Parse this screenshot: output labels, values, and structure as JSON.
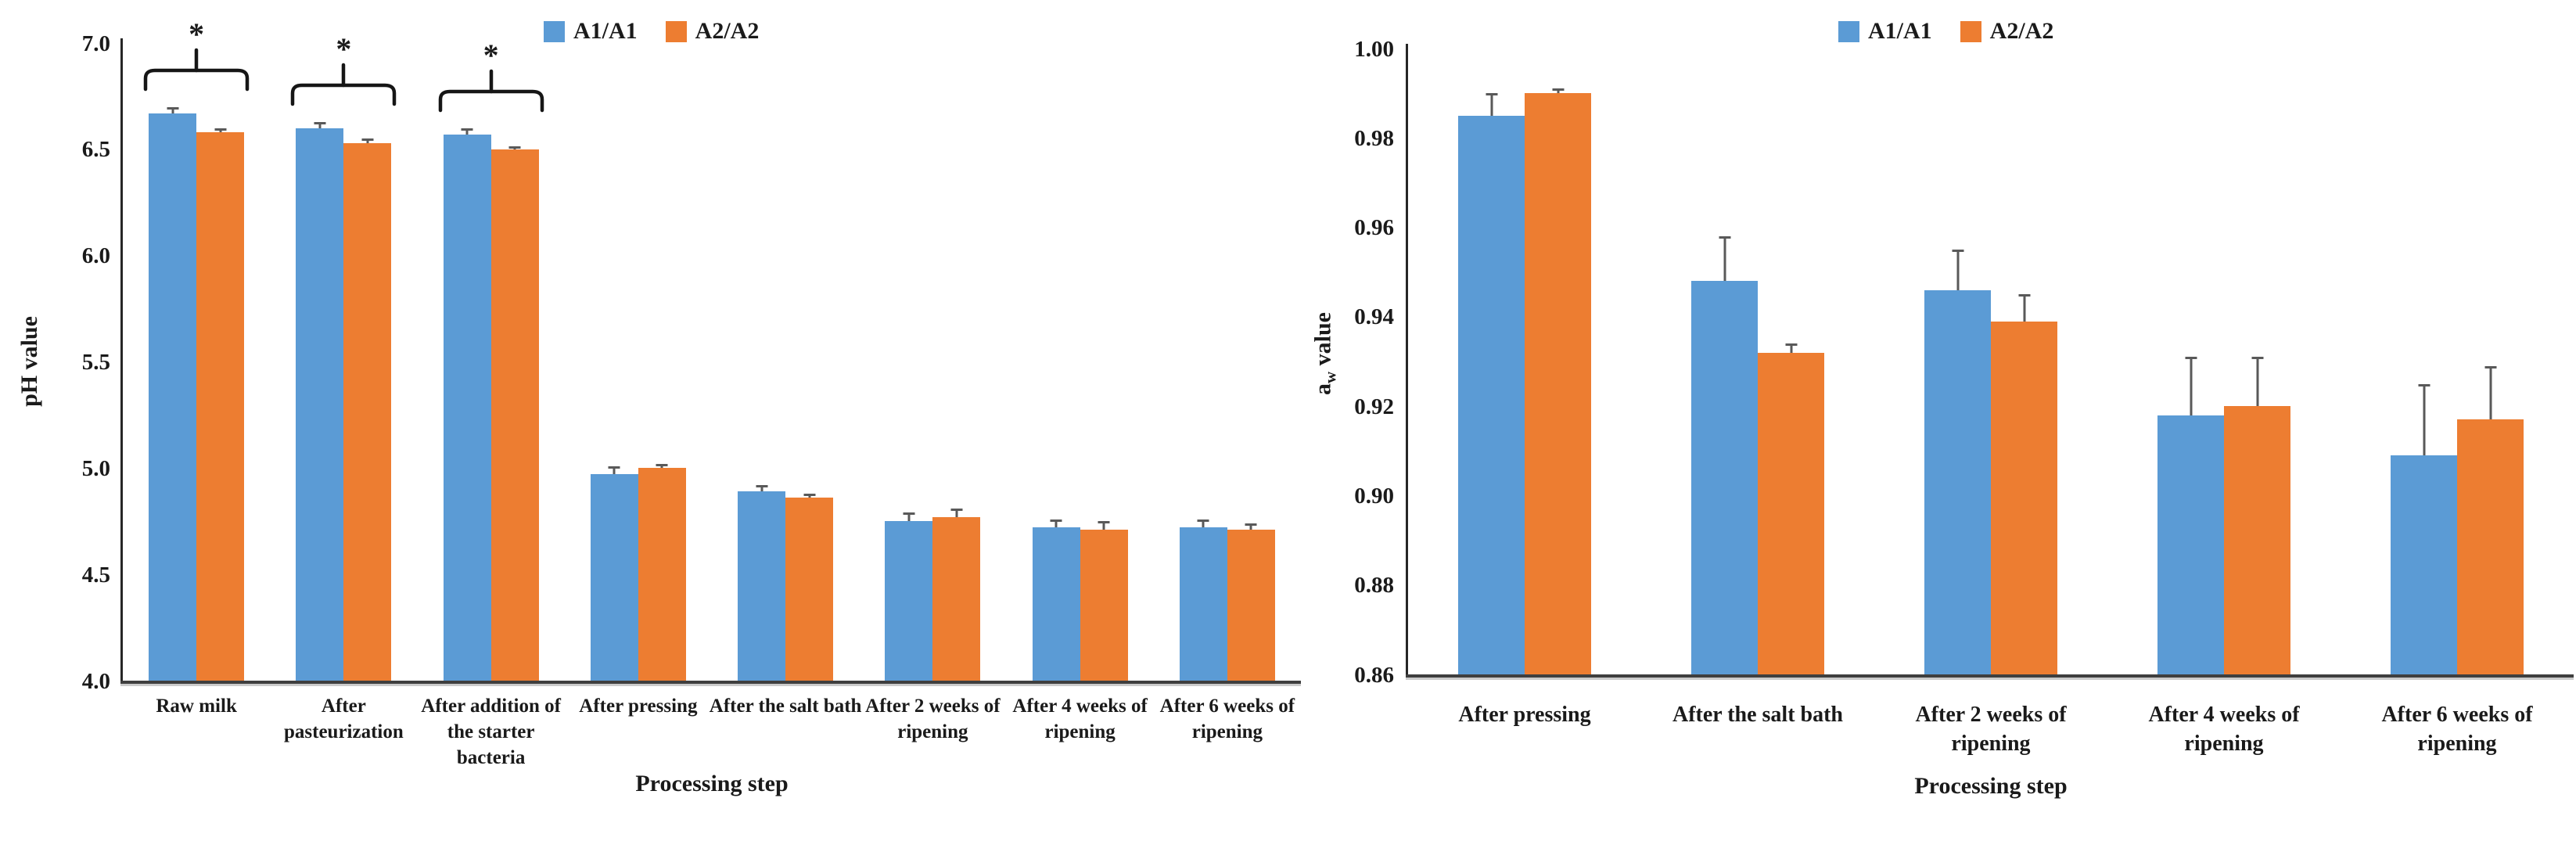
{
  "figure": {
    "background": "#ffffff",
    "axis_color": "#262626",
    "baseline_color": "#3f3f3f",
    "error_bar_color": "#595959",
    "text_color": "#1a1a1a"
  },
  "chart_data": [
    {
      "id": "ph",
      "type": "bar",
      "title": "",
      "xlabel": "Processing step",
      "ylabel": "pH value",
      "ylabel_parts": [
        {
          "text": "pH value",
          "sub": false
        }
      ],
      "ylim": [
        4.0,
        7.0
      ],
      "ytick_step": 0.5,
      "yticks": [
        "7.0",
        "6.5",
        "6.0",
        "5.5",
        "5.0",
        "4.5",
        "4.0"
      ],
      "grid": false,
      "legend_position": "top",
      "categories": [
        "Raw milk",
        "After pasteurization",
        "After addition of the starter bacteria",
        "After pressing",
        "After the salt bath",
        "After 2 weeks of ripening",
        "After 4 weeks of ripening",
        "After 6 weeks of ripening"
      ],
      "series": [
        {
          "name": "A1/A1",
          "color": "#5B9BD5",
          "values": [
            6.67,
            6.6,
            6.57,
            4.97,
            4.89,
            4.75,
            4.72,
            4.72
          ],
          "errors": [
            0.03,
            0.03,
            0.03,
            0.04,
            0.03,
            0.04,
            0.04,
            0.04
          ]
        },
        {
          "name": "A2/A2",
          "color": "#ED7D31",
          "values": [
            6.58,
            6.53,
            6.5,
            5.0,
            4.86,
            4.77,
            4.71,
            4.71
          ],
          "errors": [
            0.02,
            0.02,
            0.015,
            0.02,
            0.02,
            0.04,
            0.04,
            0.03
          ]
        }
      ],
      "significance": {
        "symbol": "*",
        "pair_indices": [
          0,
          1,
          2
        ]
      }
    },
    {
      "id": "aw",
      "type": "bar",
      "title": "",
      "xlabel": "Processing step",
      "ylabel": "aw value",
      "ylabel_parts": [
        {
          "text": "a",
          "sub": false
        },
        {
          "text": "w",
          "sub": true
        },
        {
          "text": " value",
          "sub": false
        }
      ],
      "ylim": [
        0.86,
        1.0
      ],
      "ytick_step": 0.02,
      "yticks": [
        "1.00",
        "0.98",
        "0.96",
        "0.94",
        "0.92",
        "0.90",
        "0.88",
        "0.86"
      ],
      "grid": false,
      "legend_position": "top",
      "categories": [
        "After pressing",
        "After the salt bath",
        "After 2 weeks of ripening",
        "After 4 weeks of ripening",
        "After 6 weeks of ripening"
      ],
      "series": [
        {
          "name": "A1/A1",
          "color": "#5B9BD5",
          "values": [
            0.985,
            0.948,
            0.946,
            0.918,
            0.909
          ],
          "errors": [
            0.005,
            0.01,
            0.009,
            0.013,
            0.016
          ]
        },
        {
          "name": "A2/A2",
          "color": "#ED7D31",
          "values": [
            0.99,
            0.932,
            0.939,
            0.92,
            0.917
          ],
          "errors": [
            0.001,
            0.002,
            0.006,
            0.011,
            0.012
          ]
        }
      ],
      "significance": {
        "symbol": "*",
        "pair_indices": []
      }
    }
  ]
}
